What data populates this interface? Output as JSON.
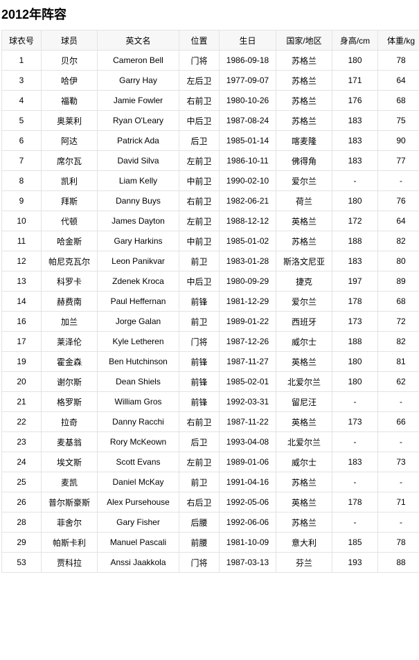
{
  "title": "2012年阵容",
  "columns": [
    "球衣号",
    "球员",
    "英文名",
    "位置",
    "生日",
    "国家/地区",
    "身高/cm",
    "体重/kg"
  ],
  "rows": [
    [
      "1",
      "贝尔",
      "Cameron Bell",
      "门将",
      "1986-09-18",
      "苏格兰",
      "180",
      "78"
    ],
    [
      "3",
      "哈伊",
      "Garry Hay",
      "左后卫",
      "1977-09-07",
      "苏格兰",
      "171",
      "64"
    ],
    [
      "4",
      "福勒",
      "Jamie Fowler",
      "右前卫",
      "1980-10-26",
      "苏格兰",
      "176",
      "68"
    ],
    [
      "5",
      "奥莱利",
      "Ryan O'Leary",
      "中后卫",
      "1987-08-24",
      "苏格兰",
      "183",
      "75"
    ],
    [
      "6",
      "阿达",
      "Patrick Ada",
      "后卫",
      "1985-01-14",
      "喀麦隆",
      "183",
      "90"
    ],
    [
      "7",
      "席尔瓦",
      "David Silva",
      "左前卫",
      "1986-10-11",
      "佛得角",
      "183",
      "77"
    ],
    [
      "8",
      "凯利",
      "Liam Kelly",
      "中前卫",
      "1990-02-10",
      "爱尔兰",
      "-",
      "-"
    ],
    [
      "9",
      "拜斯",
      "Danny Buys",
      "右前卫",
      "1982-06-21",
      "荷兰",
      "180",
      "76"
    ],
    [
      "10",
      "代顿",
      "James Dayton",
      "左前卫",
      "1988-12-12",
      "英格兰",
      "172",
      "64"
    ],
    [
      "11",
      "哈金斯",
      "Gary Harkins",
      "中前卫",
      "1985-01-02",
      "苏格兰",
      "188",
      "82"
    ],
    [
      "12",
      "帕尼克瓦尔",
      "Leon Panikvar",
      "前卫",
      "1983-01-28",
      "斯洛文尼亚",
      "183",
      "80"
    ],
    [
      "13",
      "科罗卡",
      "Zdenek Kroca",
      "中后卫",
      "1980-09-29",
      "捷克",
      "197",
      "89"
    ],
    [
      "14",
      "赫费南",
      "Paul Heffernan",
      "前锋",
      "1981-12-29",
      "爱尔兰",
      "178",
      "68"
    ],
    [
      "16",
      "加兰",
      "Jorge Galan",
      "前卫",
      "1989-01-22",
      "西班牙",
      "173",
      "72"
    ],
    [
      "17",
      "莱泽伦",
      "Kyle Letheren",
      "门将",
      "1987-12-26",
      "威尔士",
      "188",
      "82"
    ],
    [
      "19",
      "霍金森",
      "Ben Hutchinson",
      "前锋",
      "1987-11-27",
      "英格兰",
      "180",
      "81"
    ],
    [
      "20",
      "谢尔斯",
      "Dean Shiels",
      "前锋",
      "1985-02-01",
      "北爱尔兰",
      "180",
      "62"
    ],
    [
      "21",
      "格罗斯",
      "William Gros",
      "前锋",
      "1992-03-31",
      "留尼汪",
      "-",
      "-"
    ],
    [
      "22",
      "拉奇",
      "Danny Racchi",
      "右前卫",
      "1987-11-22",
      "英格兰",
      "173",
      "66"
    ],
    [
      "23",
      "麦基翁",
      "Rory McKeown",
      "后卫",
      "1993-04-08",
      "北爱尔兰",
      "-",
      "-"
    ],
    [
      "24",
      "埃文斯",
      "Scott Evans",
      "左前卫",
      "1989-01-06",
      "威尔士",
      "183",
      "73"
    ],
    [
      "25",
      "麦凯",
      "Daniel McKay",
      "前卫",
      "1991-04-16",
      "苏格兰",
      "-",
      "-"
    ],
    [
      "26",
      "普尔斯豪斯",
      "Alex Pursehouse",
      "右后卫",
      "1992-05-06",
      "英格兰",
      "178",
      "71"
    ],
    [
      "28",
      "菲舍尔",
      "Gary Fisher",
      "后腰",
      "1992-06-06",
      "苏格兰",
      "-",
      "-"
    ],
    [
      "29",
      "帕斯卡利",
      "Manuel Pascali",
      "前腰",
      "1981-10-09",
      "意大利",
      "185",
      "78"
    ],
    [
      "53",
      "贾科拉",
      "Anssi Jaakkola",
      "门将",
      "1987-03-13",
      "芬兰",
      "193",
      "88"
    ]
  ]
}
